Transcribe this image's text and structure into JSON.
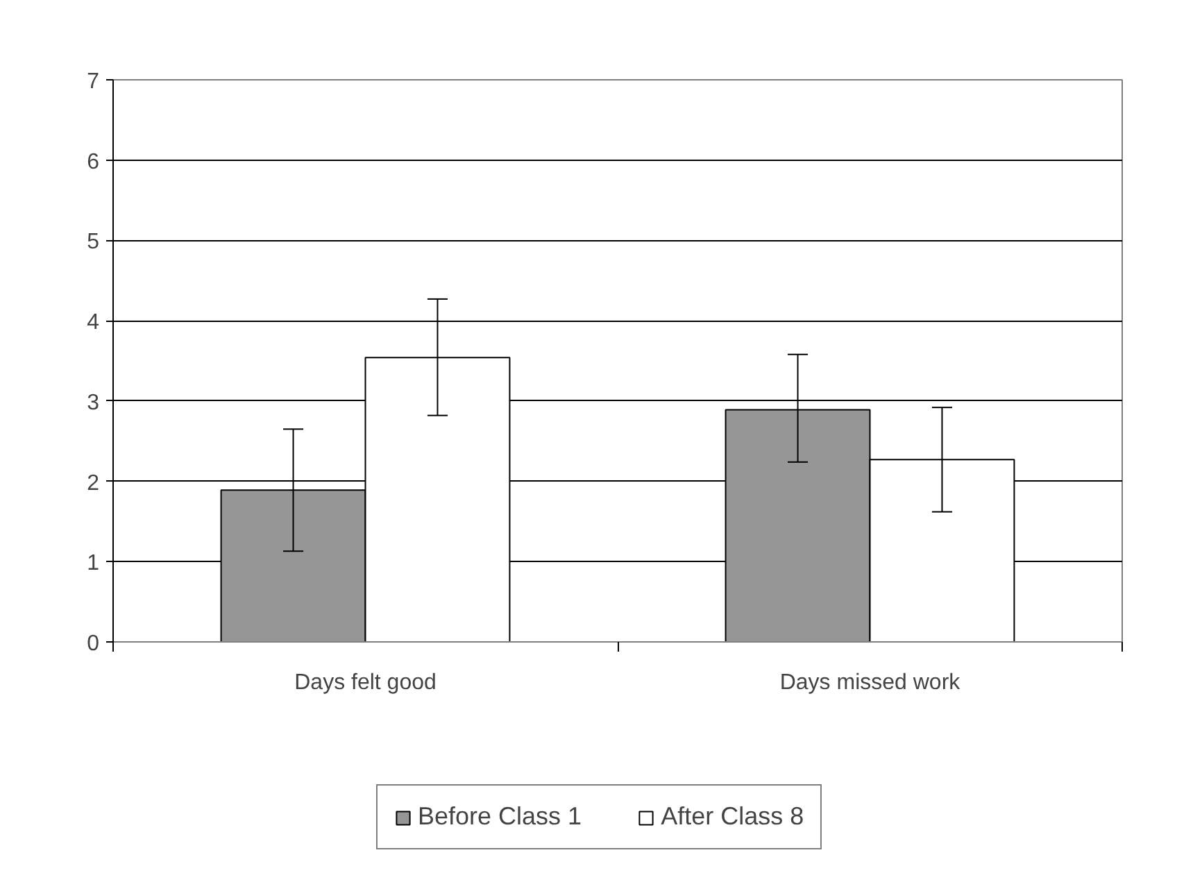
{
  "chart_data": {
    "type": "bar",
    "categories": [
      "Days felt good",
      "Days missed work"
    ],
    "series": [
      {
        "name": "Before Class 1",
        "color": "#969696",
        "values": [
          1.89,
          2.89
        ],
        "errors": [
          [
            1.13,
            2.65
          ],
          [
            2.24,
            3.58
          ]
        ]
      },
      {
        "name": "After Class 8",
        "color": "#ffffff",
        "values": [
          3.54,
          2.27
        ],
        "errors": [
          [
            2.82,
            4.27
          ],
          [
            1.62,
            2.92
          ]
        ]
      }
    ],
    "ylim": [
      0,
      7
    ],
    "yticks": [
      0,
      1,
      2,
      3,
      4,
      5,
      6,
      7
    ],
    "grid": "y",
    "legend": "bottom"
  }
}
